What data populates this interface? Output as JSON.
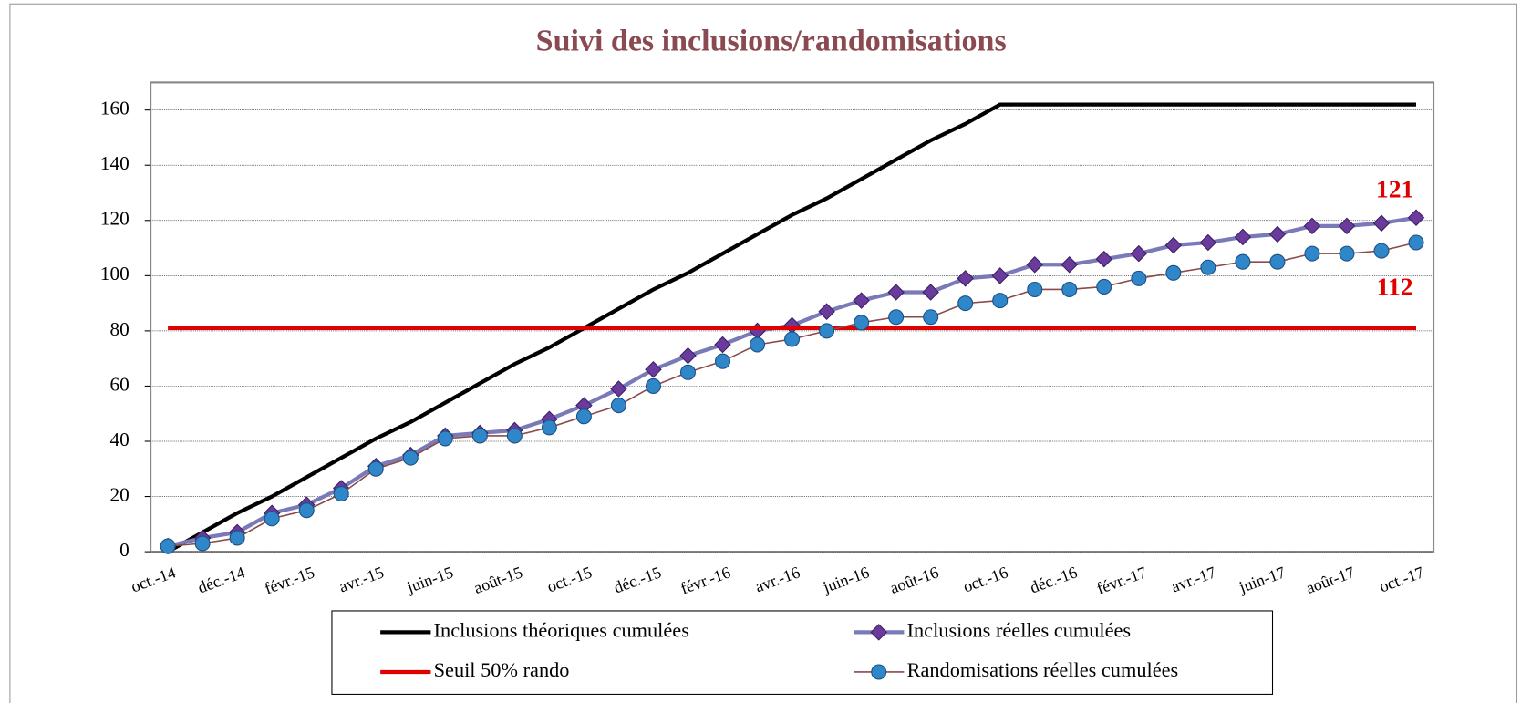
{
  "chart_data": {
    "type": "line",
    "title": "Suivi des inclusions/randomisations",
    "categories": [
      "oct.-14",
      null,
      "déc.-14",
      null,
      "févr.-15",
      null,
      "avr.-15",
      null,
      "juin-15",
      null,
      "août-15",
      null,
      "oct.-15",
      null,
      "déc.-15",
      null,
      "févr.-16",
      null,
      "avr.-16",
      null,
      "juin-16",
      null,
      "août-16",
      null,
      "oct.-16",
      null,
      "déc.-16",
      null,
      "févr.-17",
      null,
      "avr.-17",
      null,
      "juin-17",
      null,
      "août-17",
      null,
      "oct.-17"
    ],
    "series": [
      {
        "name": "Inclusions théoriques cumulées",
        "color": "#000000",
        "marker": "none",
        "values": [
          0,
          7,
          14,
          20,
          27,
          34,
          41,
          47,
          54,
          61,
          68,
          74,
          81,
          88,
          95,
          101,
          108,
          115,
          122,
          128,
          135,
          142,
          149,
          155,
          162,
          162,
          162,
          162,
          162,
          162,
          162,
          162,
          162,
          162,
          162,
          162,
          162
        ]
      },
      {
        "name": "Inclusions réelles cumulées",
        "color": "#7a7ab8",
        "marker": "diamond",
        "marker_color": "#6a3a9c",
        "values": [
          2,
          5,
          7,
          14,
          17,
          23,
          31,
          35,
          42,
          43,
          44,
          48,
          53,
          59,
          66,
          71,
          75,
          80,
          82,
          87,
          91,
          94,
          94,
          99,
          100,
          104,
          104,
          106,
          108,
          111,
          112,
          114,
          115,
          118,
          118,
          119,
          121
        ]
      },
      {
        "name": "Seuil 50% rando",
        "color": "#e00000",
        "marker": "none",
        "values": [
          81,
          81,
          81,
          81,
          81,
          81,
          81,
          81,
          81,
          81,
          81,
          81,
          81,
          81,
          81,
          81,
          81,
          81,
          81,
          81,
          81,
          81,
          81,
          81,
          81,
          81,
          81,
          81,
          81,
          81,
          81,
          81,
          81,
          81,
          81,
          81,
          81
        ]
      },
      {
        "name": "Randomisations réelles cumulées",
        "color": "#8b4a4a",
        "marker": "circle",
        "marker_color": "#2f86c8",
        "values": [
          2,
          3,
          5,
          12,
          15,
          21,
          30,
          34,
          41,
          42,
          42,
          45,
          49,
          53,
          60,
          65,
          69,
          75,
          77,
          80,
          83,
          85,
          85,
          90,
          91,
          95,
          95,
          96,
          99,
          101,
          103,
          105,
          105,
          108,
          108,
          109,
          112
        ]
      }
    ],
    "annotations": [
      "121",
      "112"
    ],
    "ylim": [
      0,
      170
    ],
    "yticks": [
      0,
      20,
      40,
      60,
      80,
      100,
      120,
      140,
      160
    ],
    "grid": true
  }
}
